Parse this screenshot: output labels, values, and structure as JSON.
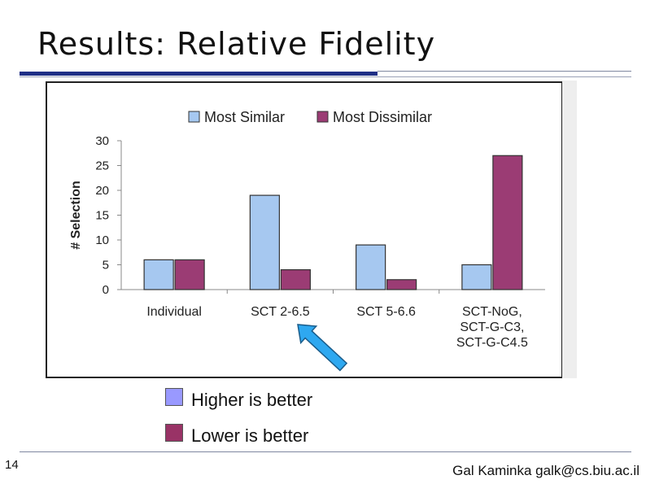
{
  "slide": {
    "title": "Results: Relative Fidelity",
    "page_number": "14",
    "footer": "Gal Kaminka  galk@cs.biu.ac.il"
  },
  "legend_notes": [
    {
      "label": "Higher is better",
      "color": "#9999ff"
    },
    {
      "label": "Lower is better",
      "color": "#993366"
    }
  ],
  "colors": {
    "title_bar": "#1f2f86",
    "similar": "#a6c8f0",
    "dissimilar": "#9b3c74",
    "arrow": "#2ea8f0"
  },
  "chart_data": {
    "type": "bar",
    "title": "",
    "xlabel": "",
    "ylabel": "# Selection",
    "ylim": [
      0,
      30
    ],
    "yticks": [
      0,
      5,
      10,
      15,
      20,
      25,
      30
    ],
    "categories": [
      [
        "Individual"
      ],
      [
        "SCT 2-6.5"
      ],
      [
        "SCT 5-6.6"
      ],
      [
        "SCT-NoG,",
        "SCT-G-C3,",
        "SCT-G-C4.5"
      ]
    ],
    "series": [
      {
        "name": "Most Similar",
        "values": [
          6,
          19,
          9,
          5
        ],
        "color": "#a6c8f0"
      },
      {
        "name": "Most Dissimilar",
        "values": [
          6,
          4,
          2,
          27
        ],
        "color": "#9b3c74"
      }
    ],
    "legend_position": "top",
    "grid": false,
    "annotation": "arrow pointing to SCT 2-6.5"
  }
}
